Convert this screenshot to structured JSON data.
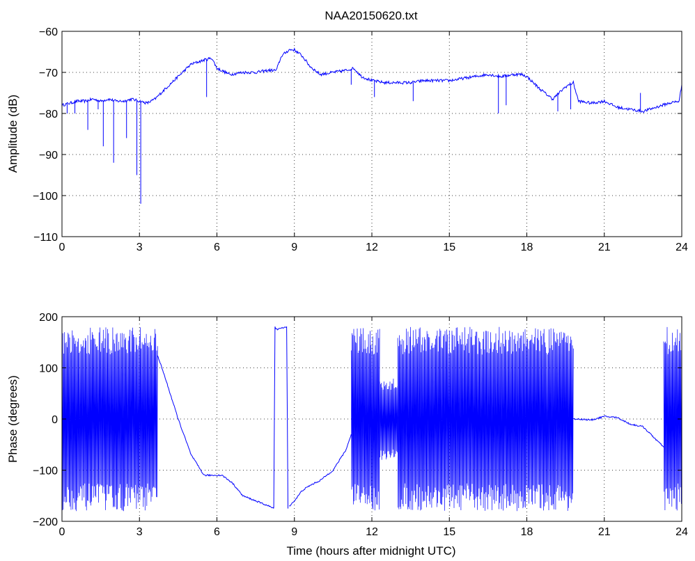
{
  "figure": {
    "background": "#ffffff",
    "line_color": "#0000ff"
  },
  "chart_data": [
    {
      "type": "line",
      "title": "NAA20150620.txt",
      "xlabel": "",
      "ylabel": "Amplitude (dB)",
      "xlim": [
        0,
        24
      ],
      "ylim": [
        -110,
        -60
      ],
      "xticks": [
        0,
        3,
        6,
        9,
        12,
        15,
        18,
        21,
        24
      ],
      "yticks": [
        -60,
        -70,
        -80,
        -90,
        -100,
        -110
      ],
      "ytick_labels": [
        "−60",
        "−70",
        "−80",
        "−90",
        "−100",
        "−110"
      ],
      "grid": true,
      "series": [
        {
          "color": "#0000ff",
          "x": [
            0,
            0.3,
            0.6,
            0.9,
            1.2,
            1.5,
            1.8,
            2.1,
            2.4,
            2.7,
            3.0,
            3.3,
            3.6,
            4.0,
            4.5,
            5.0,
            5.5,
            5.8,
            6.0,
            6.5,
            7.0,
            7.5,
            8.0,
            8.3,
            8.5,
            8.8,
            9.0,
            9.3,
            9.6,
            10.0,
            10.5,
            11.0,
            11.3,
            11.6,
            12.0,
            12.5,
            13.0,
            13.5,
            14.0,
            14.5,
            15.0,
            15.5,
            16.0,
            16.5,
            17.0,
            17.5,
            17.8,
            18.0,
            18.5,
            19.0,
            19.5,
            19.8,
            20.0,
            20.5,
            21.0,
            21.5,
            22.0,
            22.5,
            23.0,
            23.5,
            23.9,
            24.0
          ],
          "y": [
            -78,
            -77.5,
            -77,
            -77,
            -76.5,
            -77,
            -76.5,
            -77,
            -77,
            -76.5,
            -77,
            -77.5,
            -76.5,
            -74,
            -71,
            -68,
            -67,
            -66.5,
            -69,
            -70.5,
            -70,
            -70,
            -69.5,
            -69.5,
            -66,
            -64.5,
            -64.5,
            -66,
            -68.5,
            -70.5,
            -70,
            -69.5,
            -69,
            -71,
            -72,
            -72.5,
            -72.5,
            -72.5,
            -72,
            -72,
            -72,
            -71.5,
            -71,
            -70.5,
            -71,
            -70.5,
            -70.5,
            -71,
            -74,
            -76.5,
            -73.5,
            -72.5,
            -77,
            -77.5,
            -77,
            -78.5,
            -79,
            -79.5,
            -78.5,
            -77.5,
            -77,
            -73
          ]
        }
      ],
      "spikes": {
        "x": [
          0.2,
          0.5,
          1.0,
          1.4,
          1.6,
          2.0,
          2.5,
          2.9,
          3.05,
          5.6,
          11.2,
          12.1,
          13.6,
          16.9,
          17.2,
          19.2,
          19.7,
          22.4
        ],
        "y": [
          -80,
          -80,
          -84,
          -79,
          -88,
          -92,
          -86,
          -95,
          -102,
          -76,
          -73,
          -76,
          -77,
          -80,
          -78,
          -79.5,
          -79,
          -75
        ]
      }
    },
    {
      "type": "line",
      "title": "",
      "xlabel": "Time (hours after midnight UTC)",
      "ylabel": "Phase (degrees)",
      "xlim": [
        0,
        24
      ],
      "ylim": [
        -200,
        200
      ],
      "xticks": [
        0,
        3,
        6,
        9,
        12,
        15,
        18,
        21,
        24
      ],
      "yticks": [
        200,
        100,
        0,
        -100,
        -200
      ],
      "ytick_labels": [
        "200",
        "100",
        "0",
        "−100",
        "−200"
      ],
      "grid": true,
      "series": [
        {
          "color": "#0000ff",
          "x": [
            3.7,
            4.0,
            4.5,
            5.0,
            5.5,
            5.8,
            6.2,
            6.6,
            7.0,
            7.5,
            8.0,
            8.2
          ],
          "y": [
            125,
            80,
            0,
            -70,
            -110,
            -110,
            -110,
            -125,
            -150,
            -160,
            -170,
            -175
          ]
        },
        {
          "color": "#0000ff",
          "x": [
            8.8,
            9.0,
            9.3,
            9.6,
            10.0,
            10.5,
            11.0,
            11.2
          ],
          "y": [
            -170,
            -160,
            -140,
            -130,
            -120,
            -100,
            -60,
            -30
          ]
        },
        {
          "color": "#0000ff",
          "x": [
            19.8,
            20.0,
            20.5,
            21.0,
            21.5,
            22.0,
            22.5,
            23.0,
            23.3
          ],
          "y": [
            0,
            0,
            -2,
            5,
            3,
            -10,
            -15,
            -40,
            -55
          ]
        },
        {
          "color": "#0000ff",
          "x": [
            8.2,
            8.25,
            8.3,
            8.7,
            8.75
          ],
          "y": [
            -175,
            180,
            175,
            180,
            -175
          ]
        }
      ],
      "wrap_segments": [
        {
          "x_start": 0.0,
          "x_end": 3.7,
          "y_min": -180,
          "y_max": 180
        },
        {
          "x_start": 11.2,
          "x_end": 12.3,
          "y_min": -180,
          "y_max": 180
        },
        {
          "x_start": 12.3,
          "x_end": 13.0,
          "y_min": -80,
          "y_max": 80
        },
        {
          "x_start": 13.0,
          "x_end": 19.8,
          "y_min": -180,
          "y_max": 180
        },
        {
          "x_start": 23.3,
          "x_end": 24.0,
          "y_min": -180,
          "y_max": 180
        }
      ]
    }
  ]
}
